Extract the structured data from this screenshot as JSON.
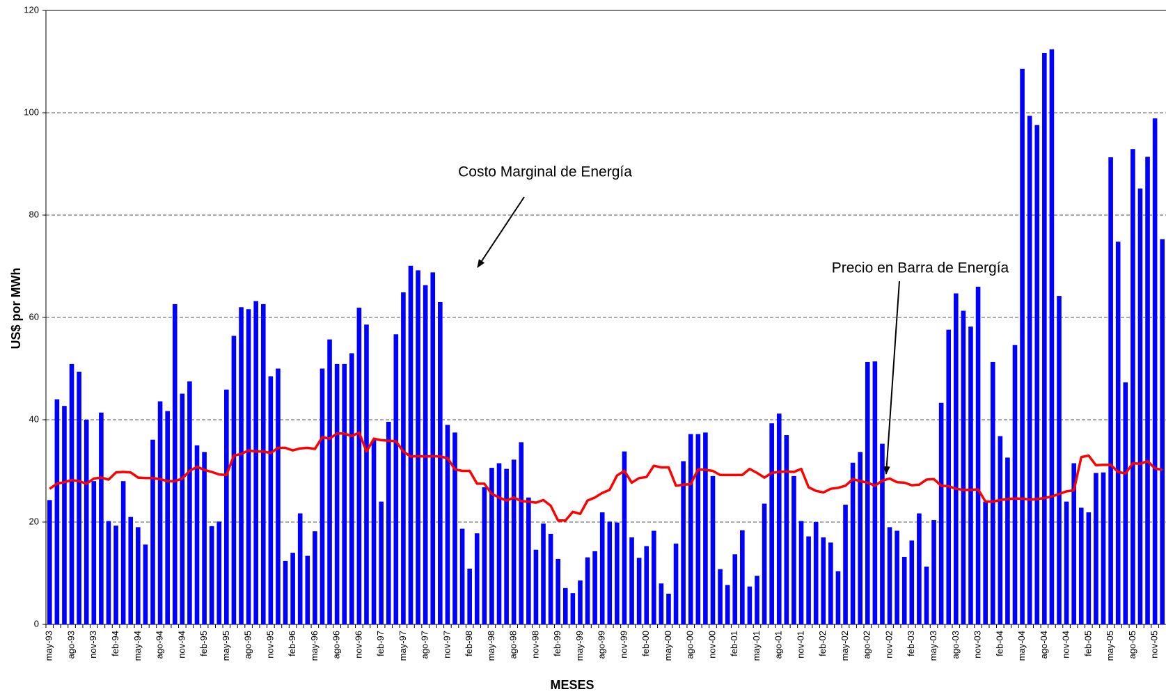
{
  "chart_data": {
    "type": "bar-line",
    "annotations": [
      "Costo Marginal de Energía",
      "Precio en Barra de Energía"
    ],
    "x_label": "MESES",
    "y_label": "US$ por MWh",
    "categories": [
      "may-93",
      null,
      null,
      "ago-93",
      null,
      null,
      "nov-93",
      null,
      null,
      "feb-94",
      null,
      null,
      "may-94",
      null,
      null,
      "ago-94",
      null,
      null,
      "nov-94",
      null,
      null,
      "feb-95",
      null,
      null,
      "may-95",
      null,
      null,
      "ago-95",
      null,
      null,
      "nov-95",
      null,
      null,
      "feb-96",
      null,
      null,
      "may-96",
      null,
      null,
      "ago-96",
      null,
      null,
      "nov-96",
      null,
      null,
      "feb-97",
      null,
      null,
      "may-97",
      null,
      null,
      "ago-97",
      null,
      null,
      "nov-97",
      null,
      null,
      "feb-98",
      null,
      null,
      "may-98",
      null,
      null,
      "ago-98",
      null,
      null,
      "nov-98",
      null,
      null,
      "feb-99",
      null,
      null,
      "may-99",
      null,
      null,
      "ago-99",
      null,
      null,
      "nov-99",
      null,
      null,
      "feb-00",
      null,
      null,
      "may-00",
      null,
      null,
      "ago-00",
      null,
      null,
      "nov-00",
      null,
      null,
      "feb-01",
      null,
      null,
      "may-01",
      null,
      null,
      "ago-01",
      null,
      null,
      "nov-01",
      null,
      null,
      "feb-02",
      null,
      null,
      "may-02",
      null,
      null,
      "ago-02",
      null,
      null,
      "nov-02",
      null,
      null,
      "feb-03",
      null,
      null,
      "may-03",
      null,
      null,
      "ago-03",
      null,
      null,
      "nov-03",
      null,
      null,
      "feb-04",
      null,
      null,
      "may-04",
      null,
      null,
      "ago-04",
      null,
      null,
      "nov-04",
      null,
      null,
      "feb-05",
      null,
      null,
      "may-05",
      null,
      null,
      "ago-05",
      null,
      null,
      "nov-05",
      null
    ],
    "series": [
      {
        "type": "bar",
        "color": "#0000ff",
        "values": [
          24.3,
          44,
          42.7,
          50.9,
          49.4,
          40,
          28,
          41.4,
          20.2,
          19.3,
          28,
          21,
          19,
          15.6,
          36.1,
          43.6,
          41.7,
          62.6,
          45.1,
          47.5,
          35,
          33.7,
          19.2,
          20.1,
          45.9,
          56.4,
          62,
          61.6,
          63.2,
          62.6,
          48.5,
          50,
          12.4,
          14,
          21.7,
          13.4,
          18.2,
          50,
          55.7,
          50.9,
          50.9,
          53,
          61.9,
          58.6,
          36,
          24,
          39.6,
          56.7,
          64.9,
          70.1,
          69.2,
          66.3,
          68.8,
          63,
          39,
          37.5,
          18.7,
          10.9,
          17.8,
          26.8,
          30.6,
          31.5,
          30.4,
          32.2,
          35.6,
          24.8,
          14.6,
          19.7,
          17.7,
          12.8,
          7.1,
          6.1,
          8.6,
          13.1,
          14.3,
          21.9,
          20.1,
          19.9,
          33.8,
          17,
          13,
          15.3,
          18.3,
          8,
          6,
          15.8,
          31.9,
          37.2,
          37.2,
          37.5,
          29,
          10.8,
          7.7,
          13.7,
          18.4,
          7.4,
          9.5,
          23.6,
          39.3,
          41.2,
          37,
          29,
          20.2,
          17.2,
          20,
          17,
          16,
          10.4,
          23.4,
          31.6,
          33.7,
          51.3,
          51.4,
          35.3,
          19,
          18.3,
          13.2,
          16.4,
          21.7,
          11.3,
          20.4,
          43.3,
          57.6,
          64.7,
          61.3,
          58.2,
          66,
          24,
          51.3,
          36.8,
          32.6,
          54.6,
          108.6,
          99.4,
          97.6,
          111.7,
          112.4,
          64.2,
          24,
          31.5,
          22.8,
          21.9,
          29.6,
          29.7,
          91.3,
          74.8,
          47.3,
          92.9,
          85.2,
          91.4,
          98.9,
          75.3
        ]
      },
      {
        "type": "line",
        "color": "#ff0000",
        "values": [
          26.5,
          27.5,
          27.8,
          28.2,
          28,
          27.5,
          28.5,
          28.7,
          28.3,
          29.7,
          29.8,
          29.7,
          28.7,
          28.6,
          28.6,
          28.4,
          28,
          28,
          28.5,
          30,
          30.8,
          30.2,
          29.8,
          29.3,
          29.2,
          33,
          33.3,
          34,
          33.8,
          33.8,
          33.5,
          34.5,
          34.5,
          34,
          34.4,
          34.5,
          34.3,
          36.6,
          36.3,
          37.3,
          37.3,
          36.8,
          37.5,
          33.8,
          36.3,
          36,
          35.9,
          35.8,
          33.8,
          32.8,
          32.9,
          32.8,
          32.9,
          32.8,
          32.5,
          30.3,
          30,
          30,
          27.5,
          27.5,
          25.5,
          24.8,
          24.2,
          24.8,
          24.1,
          24,
          23.8,
          24.3,
          23.2,
          20.3,
          20.3,
          22,
          21.6,
          24.2,
          24.8,
          25.7,
          26.3,
          29.1,
          30,
          27.7,
          28.6,
          28.8,
          31,
          30.7,
          30.7,
          27.1,
          27.3,
          27.4,
          30.3,
          30.2,
          30,
          29.2,
          29.2,
          29.2,
          29.2,
          30.4,
          29.6,
          28.7,
          29.6,
          29.8,
          29.9,
          29.8,
          30.4,
          26.8,
          26.1,
          25.8,
          26.5,
          26.7,
          27.1,
          28.4,
          28,
          27.7,
          27.1,
          28.1,
          28.5,
          27.8,
          27.7,
          27.2,
          27.3,
          28.3,
          28.4,
          27.1,
          27,
          26.5,
          26.3,
          26.3,
          26.4,
          24,
          24,
          24.3,
          24.5,
          24.6,
          24.6,
          24.4,
          24.5,
          24.7,
          25,
          25.5,
          26,
          26.2,
          32.7,
          33,
          31.1,
          31.2,
          31.2,
          29.8,
          29.5,
          31.5,
          31.4,
          31.9,
          30.5,
          30.2
        ]
      }
    ],
    "ylim": [
      0,
      120
    ],
    "yticks": [
      0,
      20,
      40,
      60,
      80,
      100,
      120
    ],
    "grid": true
  }
}
